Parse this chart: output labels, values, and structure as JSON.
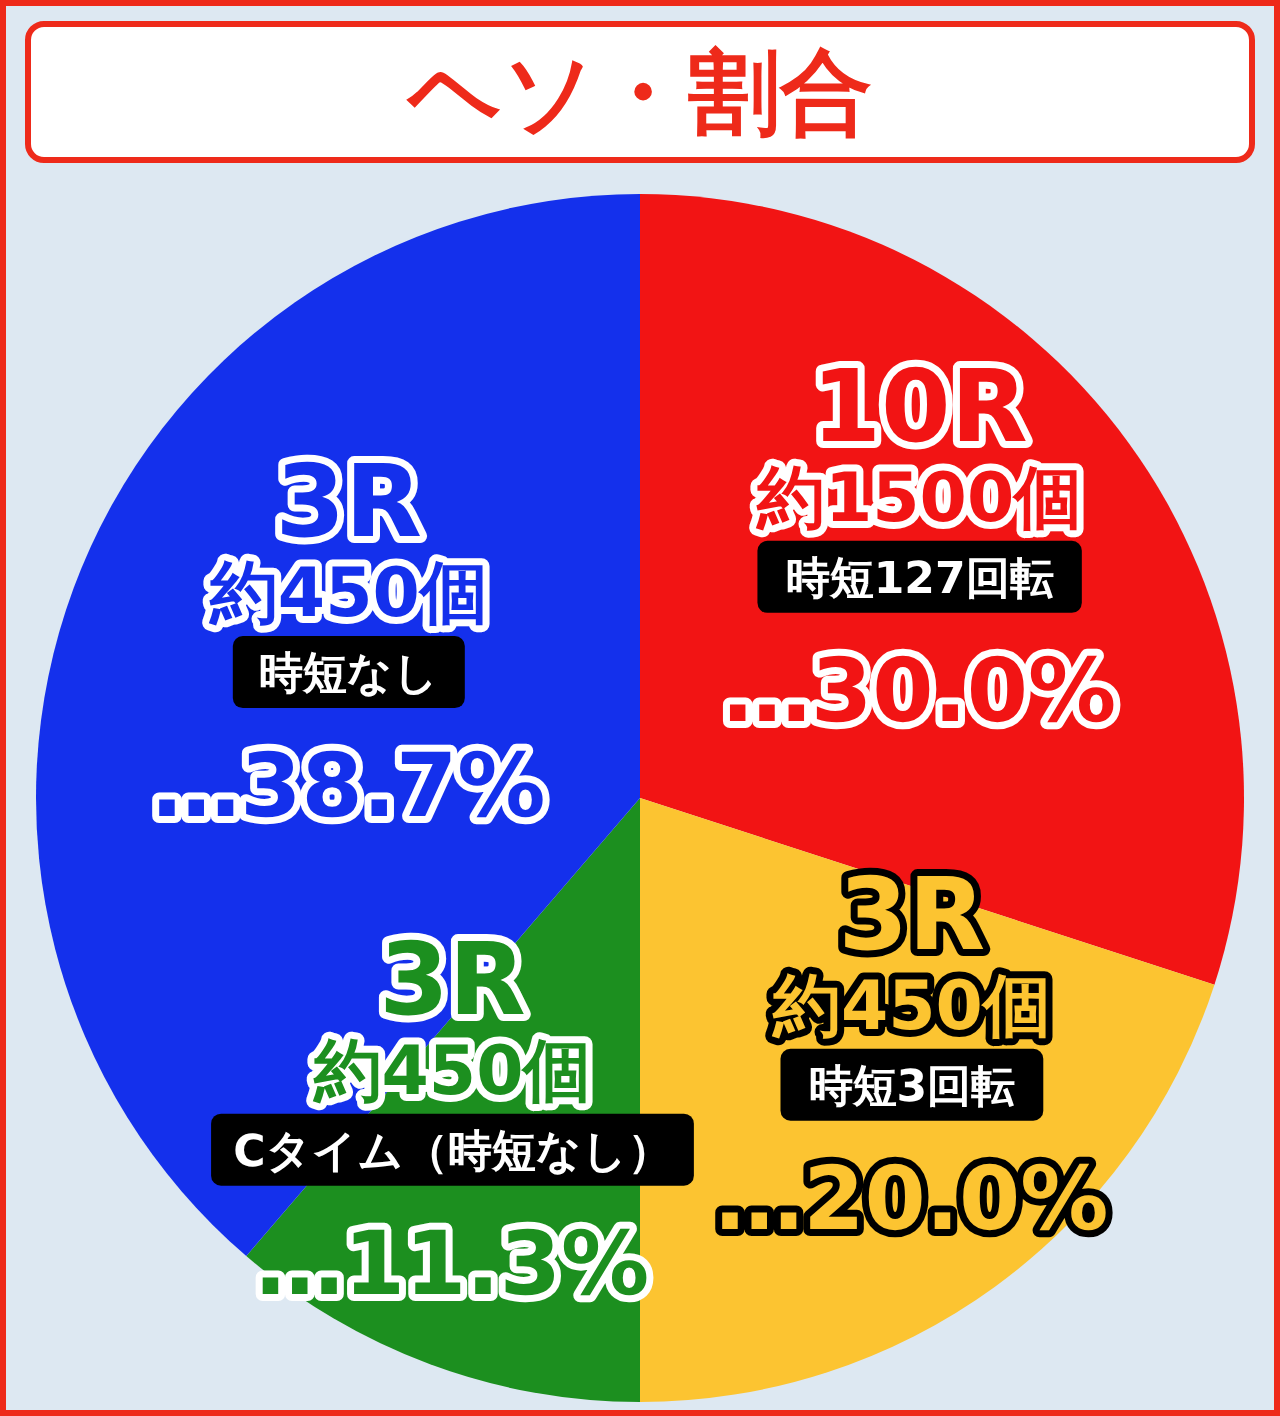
{
  "chart_data": {
    "type": "pie",
    "title": "ヘソ・割合",
    "categories": [
      "10R\n約1500個",
      "3R\n約450個",
      "3R\n約450個",
      "3R\n約450個"
    ],
    "values": [
      30.0,
      20.0,
      11.3,
      38.7
    ],
    "colors": [
      "#f21414",
      "#fcc431",
      "#1c8f1f",
      "#1430ec"
    ],
    "value_labels": [
      "…30.0%",
      "…20.0%",
      "…11.3%",
      "…38.7%"
    ],
    "annotations": [
      "時短127回転",
      "時短3回転",
      "Cタイム（時短なし）",
      "時短なし"
    ]
  }
}
